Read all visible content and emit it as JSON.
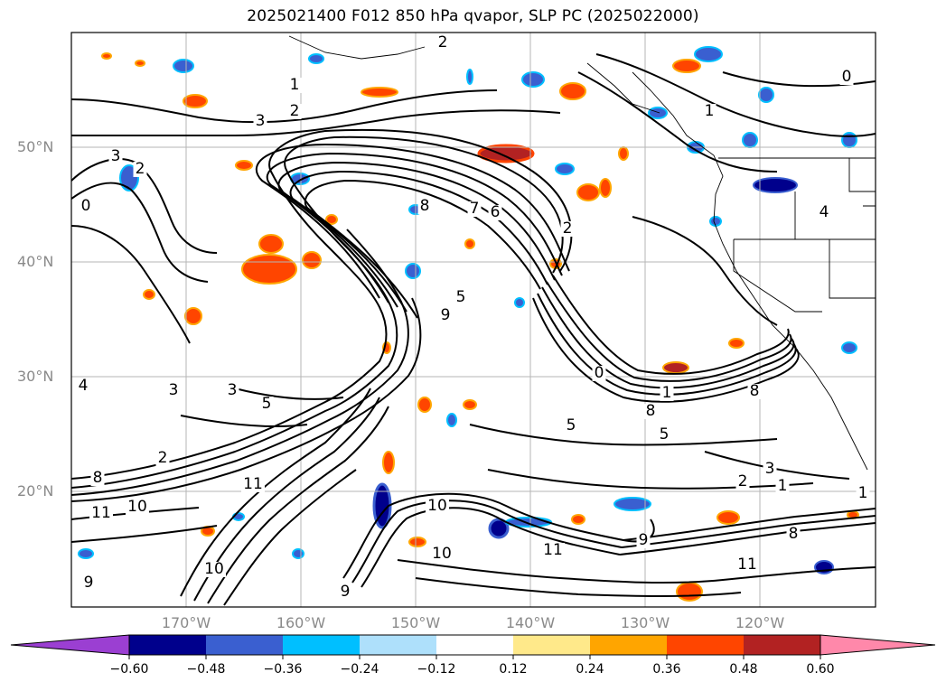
{
  "title": "2025021400 F012 850 hPa qvapor, SLP PC (2025022000)",
  "map": {
    "lat_labels": [
      "50°N",
      "40°N",
      "30°N",
      "20°N"
    ],
    "lon_labels": [
      "170°W",
      "160°W",
      "150°W",
      "140°W",
      "130°W",
      "120°W"
    ]
  },
  "colorbar": {
    "ticks": [
      "−0.60",
      "−0.48",
      "−0.36",
      "−0.24",
      "−0.12",
      "0.12",
      "0.24",
      "0.36",
      "0.48",
      "0.60"
    ],
    "colors": [
      "#9b3fd2",
      "#00008c",
      "#3a5fd0",
      "#00bfff",
      "#aee0fb",
      "#ffffff",
      "#ffe98a",
      "#ffa500",
      "#ff4500",
      "#b22222",
      "#ff88aa",
      "#ff88aa"
    ],
    "extend": "both"
  },
  "contour_labels": [
    {
      "t": "2"
    },
    {
      "t": "1"
    },
    {
      "t": "2"
    },
    {
      "t": "3"
    },
    {
      "t": "0"
    },
    {
      "t": "1"
    },
    {
      "t": "2"
    },
    {
      "t": "3"
    },
    {
      "t": "0"
    },
    {
      "t": "8"
    },
    {
      "t": "7"
    },
    {
      "t": "6"
    },
    {
      "t": "2"
    },
    {
      "t": "9"
    },
    {
      "t": "5"
    },
    {
      "t": "3"
    },
    {
      "t": "3"
    },
    {
      "t": "5"
    },
    {
      "t": "0"
    },
    {
      "t": "1"
    },
    {
      "t": "8"
    },
    {
      "t": "8"
    },
    {
      "t": "5"
    },
    {
      "t": "5"
    },
    {
      "t": "4"
    },
    {
      "t": "2"
    },
    {
      "t": "11"
    },
    {
      "t": "10"
    },
    {
      "t": "11"
    },
    {
      "t": "10"
    },
    {
      "t": "9"
    },
    {
      "t": "10"
    },
    {
      "t": "3"
    },
    {
      "t": "2"
    },
    {
      "t": "1"
    },
    {
      "t": "1"
    },
    {
      "t": "8"
    },
    {
      "t": "11"
    },
    {
      "t": "10"
    },
    {
      "t": "9"
    },
    {
      "t": "9"
    },
    {
      "t": "11"
    },
    {
      "t": "4"
    },
    {
      "t": "8"
    }
  ]
}
